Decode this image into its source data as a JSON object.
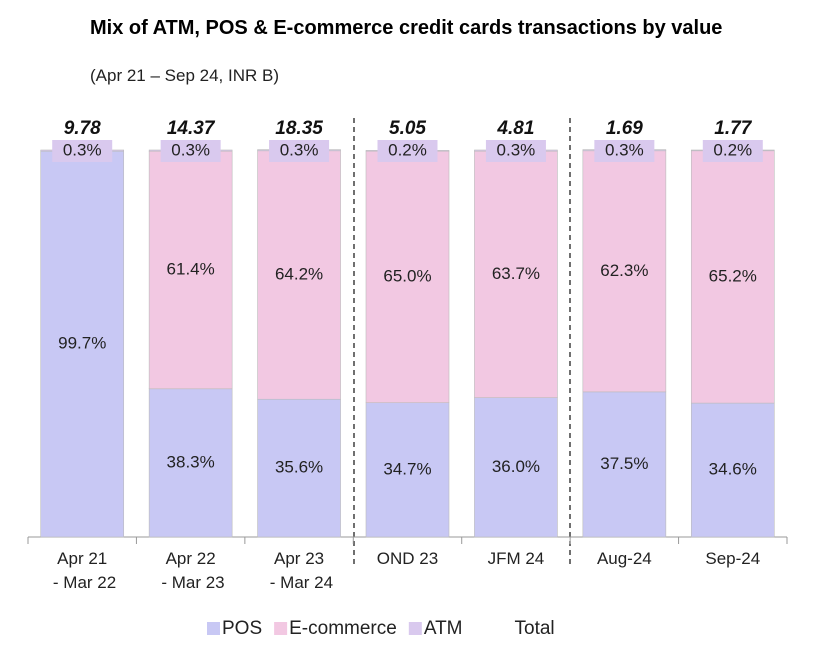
{
  "chart_data": {
    "type": "stacked-bar-100",
    "title": "Mix of ATM, POS & E-commerce credit cards transactions by value",
    "subtitle": "(Apr 21 – Sep 24, INR B)",
    "categories": [
      "Apr 21\n - Mar 22",
      "Apr 22\n - Mar 23",
      "Apr 23\n - Mar 24",
      "OND 23",
      "JFM 24",
      "Aug-24",
      "Sep-24"
    ],
    "series": [
      {
        "name": "POS",
        "color": "#c8c8f4",
        "values": [
          99.7,
          38.3,
          35.6,
          34.7,
          36.0,
          37.5,
          34.6
        ],
        "value_labels": [
          "99.7%",
          "38.3%",
          "35.6%",
          "34.7%",
          "36.0%",
          "37.5%",
          "34.6%"
        ]
      },
      {
        "name": "E-commerce",
        "color": "#f2c8e2",
        "values": [
          null,
          61.4,
          64.2,
          65.0,
          63.7,
          62.3,
          65.2
        ],
        "value_labels": [
          null,
          "61.4%",
          "64.2%",
          "65.0%",
          "63.7%",
          "62.3%",
          "65.2%"
        ]
      },
      {
        "name": "ATM",
        "color": "#d9c9ee",
        "values": [
          0.3,
          0.3,
          0.3,
          0.2,
          0.3,
          0.3,
          0.2
        ],
        "value_labels": [
          "0.3%",
          "0.3%",
          "0.3%",
          "0.2%",
          "0.3%",
          "0.3%",
          "0.2%"
        ]
      }
    ],
    "totals": {
      "name": "Total",
      "values": [
        9.78,
        14.37,
        18.35,
        5.05,
        4.81,
        1.69,
        1.77
      ]
    },
    "ylim": [
      0,
      100
    ]
  }
}
